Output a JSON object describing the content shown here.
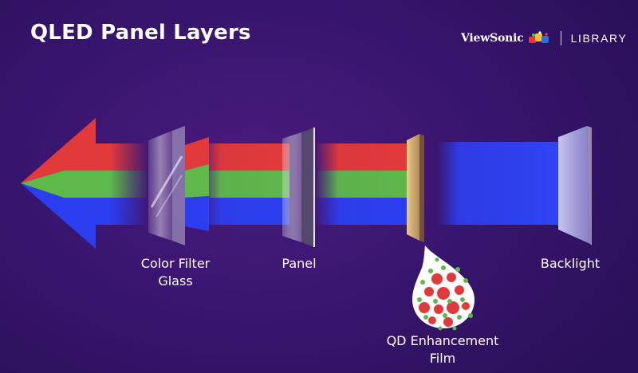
{
  "header": {
    "title": "QLED Panel Layers",
    "brand_name": "ViewSonic",
    "brand_section": "LIBRARY"
  },
  "labels": {
    "color_filter_line1": "Color Filter",
    "color_filter_line2": "Glass",
    "panel": "Panel",
    "backlight": "Backlight",
    "qd_line1": "QD Enhancement",
    "qd_line2": "Film"
  },
  "colors": {
    "background": "#3a1670",
    "red": "#e23a3a",
    "green": "#5fb84a",
    "blue": "#2c3ff0",
    "film": "#d9b76a",
    "backlight": "#b7b7ee"
  }
}
